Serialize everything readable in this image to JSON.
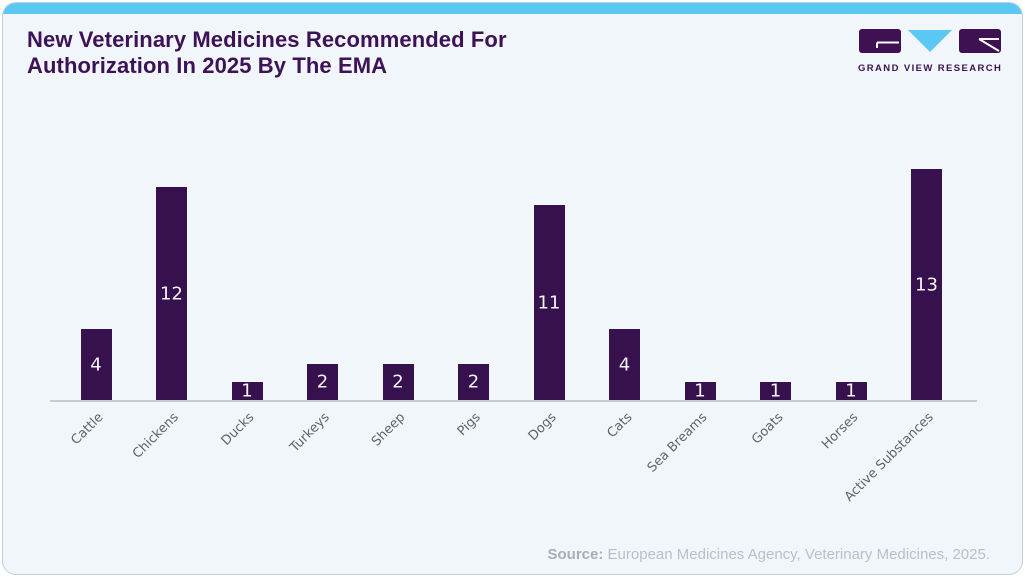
{
  "header": {
    "title_line1": "New Veterinary Medicines Recommended For",
    "title_line2": "Authorization In 2025 By The EMA"
  },
  "logo": {
    "brand": "GRAND VIEW RESEARCH"
  },
  "footer": {
    "source_label": "Source:",
    "source_text": "European Medicines Agency, Veterinary Medicines, 2025."
  },
  "colors": {
    "bar": "#36114e",
    "accent_blue": "#5ac8f2",
    "title_text": "#3e1256",
    "card_background": "#f0f6fa",
    "axis_line": "#c7ccd1",
    "tick_label": "#5f6468",
    "value_label": "#ffffff",
    "source_text": "#b9bfc5"
  },
  "chart_data": {
    "type": "bar",
    "title": "New Veterinary Medicines Recommended For Authorization In 2025 By The EMA",
    "categories": [
      "Cattle",
      "Chickens",
      "Ducks",
      "Turkeys",
      "Sheep",
      "Pigs",
      "Dogs",
      "Cats",
      "Sea Breams",
      "Goats",
      "Horses",
      "Active Substances"
    ],
    "values": [
      4,
      12,
      1,
      2,
      2,
      2,
      11,
      4,
      1,
      1,
      1,
      13
    ],
    "xlabel": "",
    "ylabel": "",
    "ylim": [
      0,
      13
    ],
    "grid": false,
    "legend": "none",
    "bar_color": "#36114e",
    "value_label_position": "inside-center",
    "x_tick_rotation_deg": 45,
    "source": "Source: European Medicines Agency, Veterinary Medicines, 2025."
  }
}
